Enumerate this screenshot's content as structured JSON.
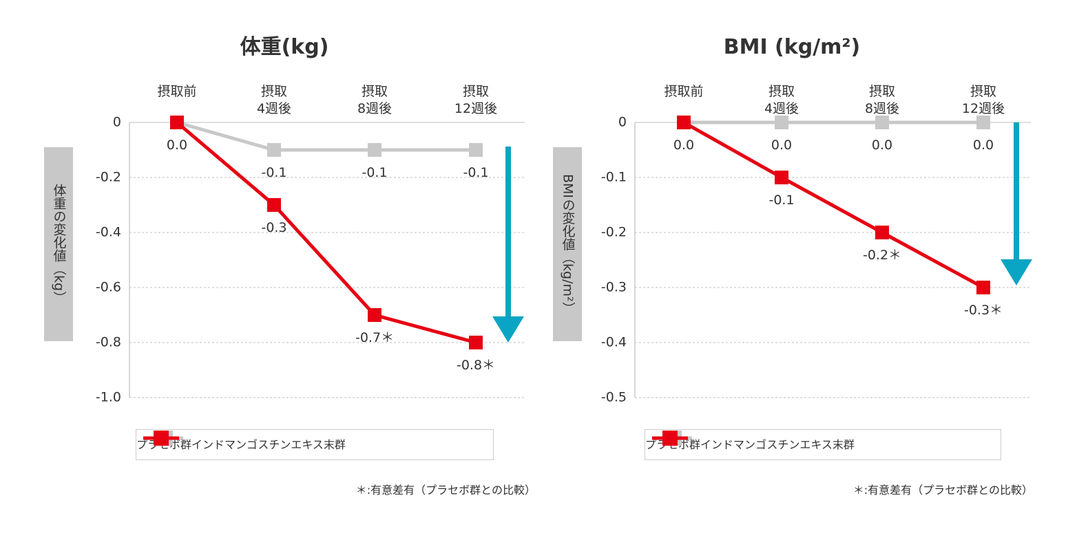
{
  "chart_data": [
    {
      "type": "line",
      "title": "体重(kg)",
      "y_label": "体重の変化値（kg）",
      "categories": [
        "摂取前",
        "摂取\n4週後",
        "摂取\n8週後",
        "摂取\n12週後"
      ],
      "series": [
        {
          "name": "プラセボ群",
          "color": "#c8c8c8",
          "values": [
            0,
            -0.1,
            -0.1,
            -0.1
          ],
          "value_labels": [
            null,
            "-0.1",
            "-0.1",
            "-0.1"
          ]
        },
        {
          "name": "インドマンゴスチンエキス末群",
          "color": "#e60012",
          "values": [
            0,
            -0.3,
            -0.7,
            -0.8
          ],
          "value_labels": [
            "0.0",
            "-0.3",
            "-0.7＊",
            "-0.8＊"
          ]
        }
      ],
      "ylim": [
        -1,
        0
      ],
      "yticks": [
        0,
        -0.2,
        -0.4,
        -0.6,
        -0.8,
        {
          "value": -1,
          "label": "-1.0"
        }
      ],
      "grid": true,
      "note": "＊:有意差有（プラセボ群との比較）"
    },
    {
      "type": "line",
      "title": "BMI (kg/m²)",
      "y_label": "BMIの変化値（kg/m²）",
      "categories": [
        "摂取前",
        "摂取\n4週後",
        "摂取\n8週後",
        "摂取\n12週後"
      ],
      "series": [
        {
          "name": "プラセボ群",
          "color": "#c8c8c8",
          "values": [
            0,
            0,
            0,
            0
          ],
          "value_labels": [
            null,
            "0.0",
            "0.0",
            "0.0"
          ]
        },
        {
          "name": "インドマンゴスチンエキス末群",
          "color": "#e60012",
          "values": [
            0,
            -0.1,
            -0.2,
            -0.3
          ],
          "value_labels": [
            "0.0",
            "-0.1",
            "-0.2＊",
            "-0.3＊"
          ]
        }
      ],
      "ylim": [
        -0.5,
        0
      ],
      "yticks": [
        0,
        -0.1,
        -0.2,
        -0.3,
        -0.4,
        -0.5
      ],
      "grid": true,
      "note": "＊:有意差有（プラセボ群との比較）"
    }
  ]
}
